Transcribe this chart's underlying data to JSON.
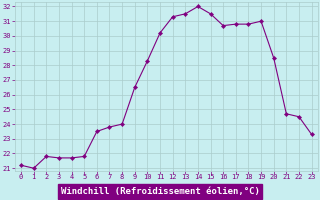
{
  "x": [
    0,
    1,
    2,
    3,
    4,
    5,
    6,
    7,
    8,
    9,
    10,
    11,
    12,
    13,
    14,
    15,
    16,
    17,
    18,
    19,
    20,
    21,
    22,
    23
  ],
  "y": [
    21.2,
    21.0,
    21.8,
    21.7,
    21.7,
    21.8,
    23.5,
    23.8,
    24.0,
    26.5,
    28.3,
    30.2,
    31.3,
    31.5,
    32.0,
    31.5,
    30.7,
    30.8,
    30.8,
    31.0,
    28.5,
    24.7,
    24.5,
    23.3
  ],
  "line_color": "#800080",
  "marker": "D",
  "marker_size": 2.2,
  "bg_color": "#c8eef0",
  "grid_color": "#aacccc",
  "xlabel": "Windchill (Refroidissement éolien,°C)",
  "xlabel_bg": "#800080",
  "xlabel_color": "#ffffff",
  "ylim": [
    21,
    32
  ],
  "yticks": [
    21,
    22,
    23,
    24,
    25,
    26,
    27,
    28,
    29,
    30,
    31,
    32
  ],
  "xticks": [
    0,
    1,
    2,
    3,
    4,
    5,
    6,
    7,
    8,
    9,
    10,
    11,
    12,
    13,
    14,
    15,
    16,
    17,
    18,
    19,
    20,
    21,
    22,
    23
  ],
  "tick_color": "#800080",
  "tick_fontsize": 5.0,
  "xlabel_fontsize": 6.5,
  "line_width": 0.8
}
